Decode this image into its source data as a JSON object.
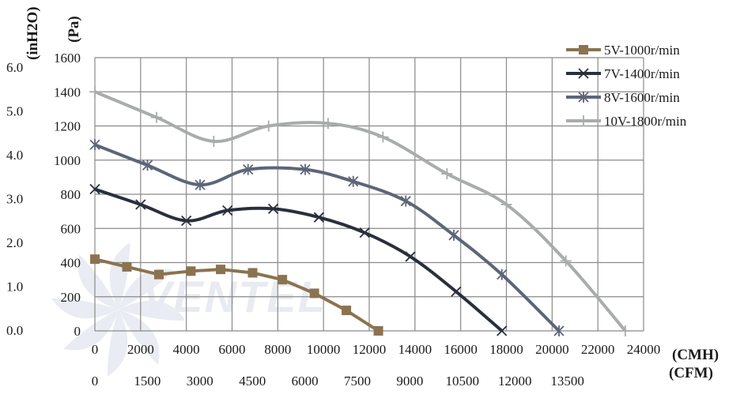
{
  "chart_data": {
    "type": "line",
    "units": {
      "y_left_outer": "(inH2O)",
      "y_left_inner": "(Pa)",
      "x_primary": "(CMH)",
      "x_secondary": "(CFM)"
    },
    "x_ticks_cmh": [
      "0",
      "2000",
      "4000",
      "6000",
      "8000",
      "10000",
      "12000",
      "14000",
      "16000",
      "18000",
      "20000",
      "22000",
      "24000"
    ],
    "x_ticks_cfm": [
      "0",
      "1500",
      "3000",
      "4500",
      "6000",
      "7500",
      "9000",
      "10500",
      "12000",
      "13500"
    ],
    "y_ticks_pa": [
      "1600",
      "1400",
      "1200",
      "1000",
      "800",
      "600",
      "400",
      "200",
      "0"
    ],
    "y_ticks_inh2o": [
      "6.0",
      "5.0",
      "4.0",
      "3.0",
      "2.0",
      "1.0",
      "0.0"
    ],
    "xlim": [
      0,
      24000
    ],
    "ylim": [
      0,
      1600
    ],
    "grid": true,
    "legend_position": "right",
    "watermark": "VENTEL",
    "series": [
      {
        "name": "5V-1000r/min",
        "color": "#8a7350",
        "marker": "square",
        "points": [
          [
            0,
            420
          ],
          [
            1400,
            375
          ],
          [
            2800,
            330
          ],
          [
            4200,
            350
          ],
          [
            5500,
            360
          ],
          [
            6900,
            340
          ],
          [
            8200,
            300
          ],
          [
            9600,
            220
          ],
          [
            11000,
            120
          ],
          [
            12400,
            0
          ]
        ]
      },
      {
        "name": "7V-1400r/min",
        "color": "#2a2f3d",
        "marker": "x",
        "points": [
          [
            0,
            830
          ],
          [
            2000,
            740
          ],
          [
            4000,
            645
          ],
          [
            5800,
            705
          ],
          [
            7800,
            715
          ],
          [
            9800,
            665
          ],
          [
            11800,
            575
          ],
          [
            13800,
            435
          ],
          [
            15800,
            230
          ],
          [
            17800,
            0
          ]
        ]
      },
      {
        "name": "8V-1600r/min",
        "color": "#5e6578",
        "marker": "asterisk",
        "points": [
          [
            0,
            1090
          ],
          [
            2300,
            970
          ],
          [
            4600,
            855
          ],
          [
            6700,
            945
          ],
          [
            9200,
            945
          ],
          [
            11300,
            875
          ],
          [
            13600,
            760
          ],
          [
            15700,
            560
          ],
          [
            17800,
            330
          ],
          [
            20300,
            0
          ]
        ]
      },
      {
        "name": "10V-1800r/min",
        "color": "#a8acaa",
        "marker": "plus",
        "points": [
          [
            0,
            1400
          ],
          [
            2700,
            1250
          ],
          [
            5200,
            1110
          ],
          [
            7600,
            1200
          ],
          [
            10200,
            1215
          ],
          [
            12600,
            1135
          ],
          [
            15400,
            920
          ],
          [
            18000,
            740
          ],
          [
            20600,
            410
          ],
          [
            23200,
            0
          ]
        ]
      }
    ]
  }
}
